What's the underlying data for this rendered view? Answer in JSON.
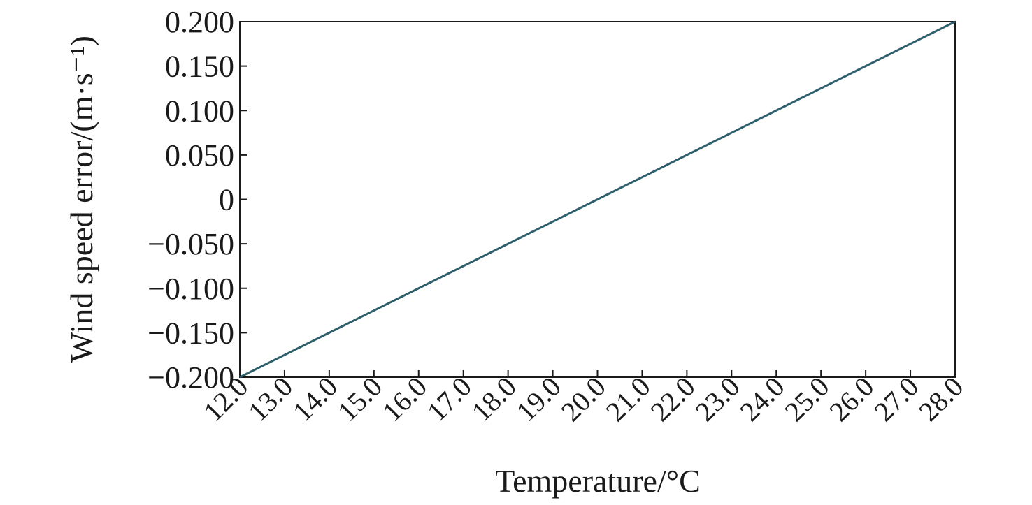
{
  "chart_data": {
    "type": "line",
    "x_label": "Temperature/°C",
    "y_label": "Wind speed error/(m·s⁻¹)",
    "x": [
      12,
      13,
      14,
      15,
      16,
      17,
      18,
      19,
      20,
      21,
      22,
      23,
      24,
      25,
      26,
      27,
      28
    ],
    "values": [
      -0.2,
      -0.175,
      -0.15,
      -0.125,
      -0.1,
      -0.075,
      -0.05,
      -0.025,
      0,
      0.025,
      0.05,
      0.075,
      0.1,
      0.125,
      0.15,
      0.175,
      0.2
    ],
    "color": "#2e5f6c",
    "xlim": [
      12,
      28
    ],
    "xticks": [
      {
        "value": 12,
        "label": "12.0"
      },
      {
        "value": 13,
        "label": "13.0"
      },
      {
        "value": 14,
        "label": "14.0"
      },
      {
        "value": 15,
        "label": "15.0"
      },
      {
        "value": 16,
        "label": "16.0"
      },
      {
        "value": 17,
        "label": "17.0"
      },
      {
        "value": 18,
        "label": "18.0"
      },
      {
        "value": 19,
        "label": "19.0"
      },
      {
        "value": 20,
        "label": "20.0"
      },
      {
        "value": 21,
        "label": "21.0"
      },
      {
        "value": 22,
        "label": "22.0"
      },
      {
        "value": 23,
        "label": "23.0"
      },
      {
        "value": 24,
        "label": "24.0"
      },
      {
        "value": 25,
        "label": "25.0"
      },
      {
        "value": 26,
        "label": "26.0"
      },
      {
        "value": 27,
        "label": "27.0"
      },
      {
        "value": 28,
        "label": "28.0"
      }
    ],
    "ylim": [
      -0.2,
      0.2
    ],
    "yticks": [
      {
        "value": -0.2,
        "label": "−0.200"
      },
      {
        "value": -0.15,
        "label": "−0.150"
      },
      {
        "value": -0.1,
        "label": "−0.100"
      },
      {
        "value": -0.05,
        "label": "−0.050"
      },
      0,
      {
        "value": 0.05,
        "label": "0.050"
      },
      {
        "value": 0.1,
        "label": "0.100"
      },
      {
        "value": 0.15,
        "label": "0.150"
      },
      {
        "value": 0.2,
        "label": "0.200"
      }
    ],
    "grid": false
  }
}
